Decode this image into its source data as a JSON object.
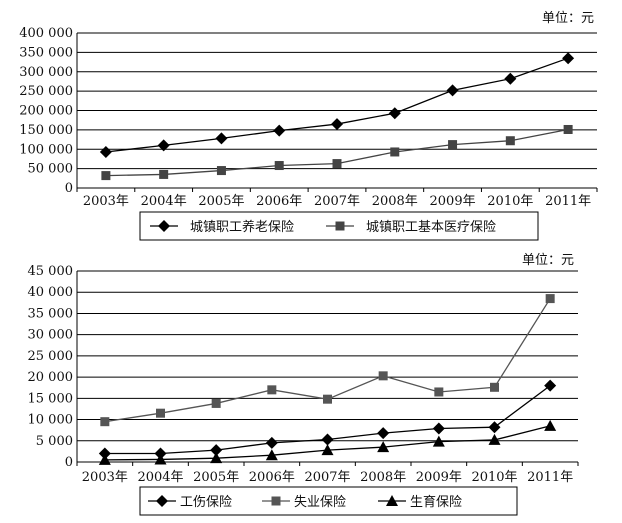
{
  "chart_data": [
    {
      "type": "line",
      "unit_label": "单位：元",
      "categories": [
        "2003年",
        "2004年",
        "2005年",
        "2006年",
        "2007年",
        "2008年",
        "2009年",
        "2010年",
        "2011年"
      ],
      "y_ticks": [
        "0",
        "50 000",
        "100 000",
        "150 000",
        "200 000",
        "250 000",
        "300 000",
        "350 000",
        "400 000"
      ],
      "ylim": [
        0,
        400000
      ],
      "grid": true,
      "legend_position": "bottom",
      "series": [
        {
          "name": "城镇职工养老保险",
          "marker": "diamond",
          "color": "#000000",
          "values": [
            93000,
            110000,
            128000,
            148000,
            165000,
            193000,
            252000,
            282000,
            335000
          ]
        },
        {
          "name": "城镇职工基本医疗保险",
          "marker": "square",
          "color": "#444444",
          "values": [
            32000,
            35000,
            45000,
            58000,
            63000,
            93000,
            112000,
            122000,
            151000
          ]
        }
      ]
    },
    {
      "type": "line",
      "unit_label": "单位：元",
      "categories": [
        "2003年",
        "2004年",
        "2005年",
        "2006年",
        "2007年",
        "2008年",
        "2009年",
        "2010年",
        "2011年"
      ],
      "y_ticks": [
        "0",
        "5 000",
        "10 000",
        "15 000",
        "20 000",
        "25 000",
        "30 000",
        "35 000",
        "40 000",
        "45 000"
      ],
      "ylim": [
        0,
        45000
      ],
      "grid": true,
      "legend_position": "bottom",
      "series": [
        {
          "name": "工伤保险",
          "marker": "diamond",
          "color": "#000000",
          "values": [
            2000,
            2000,
            2800,
            4500,
            5300,
            6800,
            7900,
            8200,
            18000
          ]
        },
        {
          "name": "失业保险",
          "marker": "square",
          "color": "#555555",
          "values": [
            9500,
            11500,
            13800,
            17000,
            14800,
            20300,
            16500,
            17600,
            38500
          ]
        },
        {
          "name": "生育保险",
          "marker": "triangle",
          "color": "#000000",
          "values": [
            500,
            600,
            900,
            1600,
            2800,
            3500,
            4800,
            5200,
            8500
          ]
        }
      ]
    }
  ]
}
